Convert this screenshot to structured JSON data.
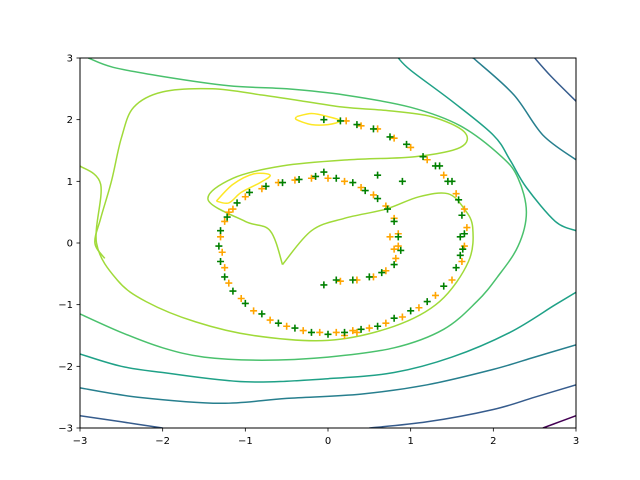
{
  "chart_data": {
    "type": "scatter",
    "title": "",
    "xlabel": "",
    "ylabel": "",
    "xlim": [
      -3,
      3
    ],
    "ylim": [
      -3,
      3
    ],
    "grid": false,
    "legend": "none",
    "x_ticks": [
      -3,
      -2,
      -1,
      0,
      1,
      2,
      3
    ],
    "y_ticks": [
      -3,
      -2,
      -1,
      0,
      1,
      2,
      3
    ],
    "x_tick_labels": [
      "−3",
      "−2",
      "−1",
      "0",
      "1",
      "2",
      "3"
    ],
    "y_tick_labels": [
      "−3",
      "−2",
      "−1",
      "0",
      "1",
      "2",
      "3"
    ],
    "contours": [
      {
        "color": "#fde725",
        "points": [
          [
            -0.38,
            2.05
          ],
          [
            -0.2,
            2.1
          ],
          [
            0.0,
            2.05
          ],
          [
            0.15,
            1.98
          ],
          [
            0.0,
            1.92
          ],
          [
            -0.2,
            1.92
          ],
          [
            -0.38,
            2.0
          ],
          [
            -0.38,
            2.05
          ]
        ]
      },
      {
        "color": "#fde725",
        "points": [
          [
            -1.35,
            0.68
          ],
          [
            -1.15,
            0.95
          ],
          [
            -0.9,
            1.12
          ],
          [
            -0.7,
            1.1
          ],
          [
            -0.82,
            0.98
          ],
          [
            -1.05,
            0.82
          ],
          [
            -1.2,
            0.65
          ],
          [
            -1.35,
            0.68
          ]
        ]
      },
      {
        "color": "#a0da39",
        "points": [
          [
            -3.0,
            1.25
          ],
          [
            -2.75,
            0.95
          ],
          [
            -2.8,
            0.0
          ],
          [
            -2.55,
            -0.6
          ],
          [
            -2.2,
            -0.95
          ],
          [
            -1.6,
            -1.28
          ],
          [
            -0.9,
            -1.5
          ],
          [
            0.0,
            -1.58
          ],
          [
            0.8,
            -1.35
          ],
          [
            1.35,
            -0.95
          ],
          [
            1.7,
            -0.3
          ],
          [
            1.75,
            0.25
          ],
          [
            1.65,
            0.55
          ],
          [
            1.45,
            0.8
          ],
          [
            1.1,
            0.75
          ],
          [
            0.7,
            0.55
          ],
          [
            0.2,
            0.4
          ],
          [
            -0.2,
            0.2
          ],
          [
            -0.55,
            -0.35
          ]
        ]
      },
      {
        "color": "#a0da39",
        "points": [
          [
            -0.55,
            -0.35
          ],
          [
            -0.7,
            0.2
          ],
          [
            -1.0,
            0.35
          ],
          [
            -1.45,
            0.7
          ],
          [
            -1.15,
            1.05
          ],
          [
            -0.55,
            1.25
          ],
          [
            0.25,
            1.35
          ],
          [
            1.05,
            1.4
          ],
          [
            1.6,
            1.55
          ],
          [
            1.65,
            1.8
          ],
          [
            1.25,
            2.05
          ],
          [
            0.7,
            2.15
          ],
          [
            0.2,
            2.2
          ],
          [
            -0.3,
            2.3
          ],
          [
            -0.8,
            2.4
          ],
          [
            -1.4,
            2.5
          ],
          [
            -2.0,
            2.45
          ],
          [
            -2.35,
            2.2
          ],
          [
            -2.5,
            1.7
          ],
          [
            -2.62,
            1.0
          ],
          [
            -2.75,
            0.4
          ],
          [
            -2.82,
            0.0
          ],
          [
            -2.7,
            -0.25
          ]
        ]
      },
      {
        "color": "#4ac16d",
        "points": [
          [
            -3.0,
            -1.15
          ],
          [
            -2.5,
            -1.45
          ],
          [
            -2.0,
            -1.7
          ],
          [
            -1.5,
            -1.85
          ],
          [
            -0.8,
            -1.9
          ],
          [
            0.0,
            -1.85
          ],
          [
            0.8,
            -1.7
          ],
          [
            1.4,
            -1.4
          ],
          [
            1.8,
            -0.95
          ],
          [
            2.05,
            -0.55
          ],
          [
            2.3,
            -0.05
          ],
          [
            2.4,
            0.5
          ],
          [
            2.3,
            1.05
          ],
          [
            2.1,
            1.4
          ],
          [
            1.6,
            1.9
          ],
          [
            1.0,
            2.2
          ],
          [
            0.2,
            2.4
          ],
          [
            -0.5,
            2.5
          ],
          [
            -1.2,
            2.55
          ],
          [
            -2.0,
            2.7
          ],
          [
            -2.6,
            2.85
          ],
          [
            -2.9,
            3.0
          ]
        ]
      },
      {
        "color": "#1fa187",
        "points": [
          [
            -3.0,
            -1.8
          ],
          [
            -2.5,
            -2.0
          ],
          [
            -2.0,
            -2.1
          ],
          [
            -1.0,
            -2.25
          ],
          [
            0.0,
            -2.2
          ],
          [
            0.8,
            -2.1
          ],
          [
            1.5,
            -1.85
          ],
          [
            2.2,
            -1.45
          ],
          [
            2.75,
            -1.0
          ],
          [
            3.0,
            -0.8
          ]
        ]
      },
      {
        "color": "#1fa187",
        "points": [
          [
            3.0,
            0.2
          ],
          [
            2.75,
            0.35
          ],
          [
            2.4,
            0.9
          ],
          [
            2.2,
            1.35
          ],
          [
            2.0,
            1.75
          ],
          [
            1.5,
            2.3
          ],
          [
            1.0,
            2.8
          ],
          [
            0.85,
            3.0
          ]
        ]
      },
      {
        "color": "#277f8e",
        "points": [
          [
            -3.0,
            -2.35
          ],
          [
            -2.3,
            -2.5
          ],
          [
            -1.3,
            -2.6
          ],
          [
            -0.5,
            -2.52
          ],
          [
            0.4,
            -2.45
          ],
          [
            1.2,
            -2.3
          ],
          [
            2.0,
            -2.05
          ],
          [
            2.5,
            -1.85
          ],
          [
            3.0,
            -1.65
          ]
        ]
      },
      {
        "color": "#277f8e",
        "points": [
          [
            3.0,
            1.35
          ],
          [
            2.6,
            1.75
          ],
          [
            2.25,
            2.4
          ],
          [
            1.8,
            2.95
          ],
          [
            1.75,
            3.0
          ]
        ]
      },
      {
        "color": "#365c8d",
        "points": [
          [
            -3.0,
            -2.8
          ],
          [
            -2.5,
            -2.9
          ],
          [
            -2.0,
            -3.0
          ]
        ]
      },
      {
        "color": "#365c8d",
        "points": [
          [
            0.5,
            -3.0
          ],
          [
            1.2,
            -2.9
          ],
          [
            2.0,
            -2.7
          ],
          [
            2.5,
            -2.5
          ],
          [
            3.0,
            -2.3
          ]
        ]
      },
      {
        "color": "#365c8d",
        "points": [
          [
            3.0,
            2.3
          ],
          [
            2.7,
            2.7
          ],
          [
            2.5,
            3.0
          ]
        ]
      },
      {
        "color": "#440154",
        "points": [
          [
            2.6,
            -3.0
          ],
          [
            2.8,
            -2.9
          ],
          [
            3.0,
            -2.8
          ]
        ]
      }
    ],
    "series": [
      {
        "marker": "+",
        "color": "#ffa500",
        "points": [
          [
            0.22,
            1.98
          ],
          [
            0.4,
            1.9
          ],
          [
            0.6,
            1.85
          ],
          [
            0.8,
            1.7
          ],
          [
            1.0,
            1.55
          ],
          [
            1.2,
            1.35
          ],
          [
            1.4,
            1.1
          ],
          [
            1.55,
            0.8
          ],
          [
            1.65,
            0.55
          ],
          [
            1.68,
            0.25
          ],
          [
            1.65,
            -0.05
          ],
          [
            1.62,
            -0.3
          ],
          [
            1.5,
            -0.6
          ],
          [
            1.3,
            -0.85
          ],
          [
            1.1,
            -1.05
          ],
          [
            0.9,
            -1.2
          ],
          [
            0.7,
            -1.3
          ],
          [
            0.5,
            -1.38
          ],
          [
            0.3,
            -1.42
          ],
          [
            0.1,
            -1.45
          ],
          [
            -0.1,
            -1.45
          ],
          [
            -0.3,
            -1.42
          ],
          [
            -0.5,
            -1.35
          ],
          [
            -0.7,
            -1.25
          ],
          [
            -0.9,
            -1.1
          ],
          [
            -1.05,
            -0.9
          ],
          [
            -1.2,
            -0.65
          ],
          [
            -1.25,
            -0.4
          ],
          [
            -1.28,
            -0.15
          ],
          [
            -1.3,
            0.1
          ],
          [
            -1.25,
            0.35
          ],
          [
            -1.15,
            0.55
          ],
          [
            -1.0,
            0.75
          ],
          [
            -0.8,
            0.88
          ],
          [
            -0.6,
            0.98
          ],
          [
            -0.4,
            1.02
          ],
          [
            -0.2,
            1.05
          ],
          [
            0.0,
            1.05
          ],
          [
            0.2,
            1.0
          ],
          [
            0.4,
            0.9
          ],
          [
            0.55,
            0.78
          ],
          [
            0.7,
            0.6
          ],
          [
            0.8,
            0.4
          ],
          [
            0.85,
            0.15
          ],
          [
            0.85,
            -0.05
          ],
          [
            0.82,
            -0.25
          ],
          [
            0.7,
            -0.45
          ],
          [
            0.55,
            -0.55
          ],
          [
            0.35,
            -0.6
          ],
          [
            0.15,
            -0.62
          ],
          [
            0.8,
            -0.1
          ],
          [
            0.75,
            0.1
          ],
          [
            -1.2,
            0.5
          ],
          [
            0.35,
            -1.45
          ],
          [
            0.2,
            -1.5
          ]
        ]
      },
      {
        "marker": "+",
        "color": "#008000",
        "points": [
          [
            -0.05,
            2.0
          ],
          [
            0.15,
            1.98
          ],
          [
            0.35,
            1.92
          ],
          [
            0.55,
            1.85
          ],
          [
            0.75,
            1.72
          ],
          [
            0.95,
            1.6
          ],
          [
            1.15,
            1.4
          ],
          [
            1.3,
            1.25
          ],
          [
            1.45,
            1.0
          ],
          [
            1.58,
            0.7
          ],
          [
            1.62,
            0.45
          ],
          [
            1.65,
            0.15
          ],
          [
            1.63,
            -0.1
          ],
          [
            1.55,
            -0.4
          ],
          [
            1.4,
            -0.7
          ],
          [
            1.2,
            -0.95
          ],
          [
            1.0,
            -1.1
          ],
          [
            0.8,
            -1.22
          ],
          [
            0.6,
            -1.35
          ],
          [
            0.4,
            -1.4
          ],
          [
            0.2,
            -1.45
          ],
          [
            0.0,
            -1.48
          ],
          [
            -0.2,
            -1.45
          ],
          [
            -0.4,
            -1.38
          ],
          [
            -0.6,
            -1.3
          ],
          [
            -0.8,
            -1.15
          ],
          [
            -1.0,
            -0.98
          ],
          [
            -1.15,
            -0.78
          ],
          [
            -1.25,
            -0.55
          ],
          [
            -1.3,
            -0.3
          ],
          [
            -1.32,
            -0.05
          ],
          [
            -1.3,
            0.2
          ],
          [
            -1.22,
            0.42
          ],
          [
            -1.1,
            0.65
          ],
          [
            -0.95,
            0.82
          ],
          [
            -0.75,
            0.92
          ],
          [
            -0.55,
            0.98
          ],
          [
            -0.35,
            1.03
          ],
          [
            -0.15,
            1.08
          ],
          [
            -0.05,
            1.15
          ],
          [
            0.1,
            1.05
          ],
          [
            0.3,
            0.98
          ],
          [
            0.45,
            0.85
          ],
          [
            0.6,
            0.72
          ],
          [
            0.72,
            0.55
          ],
          [
            0.8,
            0.35
          ],
          [
            0.85,
            0.1
          ],
          [
            0.88,
            -0.12
          ],
          [
            0.8,
            -0.35
          ],
          [
            0.65,
            -0.48
          ],
          [
            0.5,
            -0.55
          ],
          [
            0.3,
            -0.6
          ],
          [
            0.1,
            -0.6
          ],
          [
            -0.05,
            -0.68
          ],
          [
            1.6,
            0.1
          ],
          [
            1.5,
            1.0
          ],
          [
            0.6,
            1.1
          ],
          [
            0.9,
            1.0
          ],
          [
            1.35,
            1.25
          ],
          [
            1.6,
            -0.2
          ]
        ]
      }
    ]
  }
}
